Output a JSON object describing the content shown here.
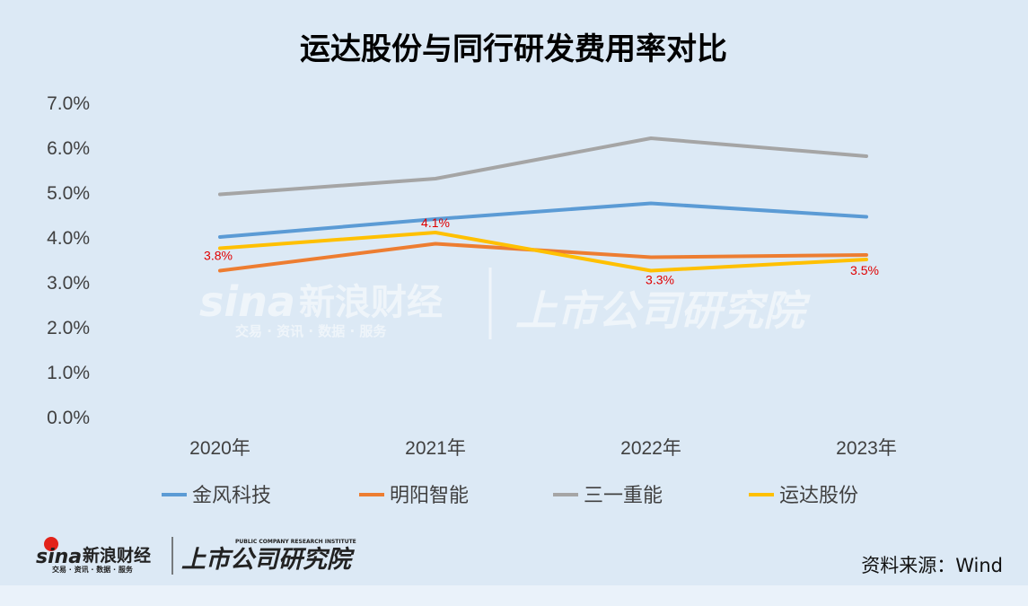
{
  "chart_data": {
    "type": "line",
    "title": "运达股份与同行研发费用率对比",
    "categories": [
      "2020年",
      "2021年",
      "2022年",
      "2023年"
    ],
    "ylim": [
      0,
      7
    ],
    "yticks": [
      "0.0%",
      "1.0%",
      "2.0%",
      "3.0%",
      "4.0%",
      "5.0%",
      "6.0%",
      "7.0%"
    ],
    "grid": false,
    "legend_position": "bottom",
    "series": [
      {
        "name": "金风科技",
        "color": "#5b9bd5",
        "values": [
          4.0,
          4.4,
          4.75,
          4.45
        ]
      },
      {
        "name": "明阳智能",
        "color": "#ed7d31",
        "values": [
          3.25,
          3.85,
          3.55,
          3.6
        ]
      },
      {
        "name": "三一重能",
        "color": "#a5a5a5",
        "values": [
          4.95,
          5.3,
          6.2,
          5.8
        ]
      },
      {
        "name": "运达股份",
        "color": "#ffc000",
        "values": [
          3.75,
          4.1,
          3.25,
          3.5
        ],
        "data_labels": [
          "3.8%",
          "4.1%",
          "3.3%",
          "3.5%"
        ]
      }
    ]
  },
  "source": "资料来源：Wind",
  "watermark": {
    "brand": "sina",
    "brand_cn": "新浪财经",
    "tagline": "交易 · 资讯 · 数据 · 服务",
    "institute": "上市公司研究院"
  },
  "footer_logo": {
    "brand": "sina",
    "brand_cn": "新浪财经",
    "tagline": "交易 · 资讯 · 数据 · 服务",
    "institute": "上市公司研究院",
    "institute_en": "PUBLIC COMPANY RESEARCH INSTITUTE"
  }
}
